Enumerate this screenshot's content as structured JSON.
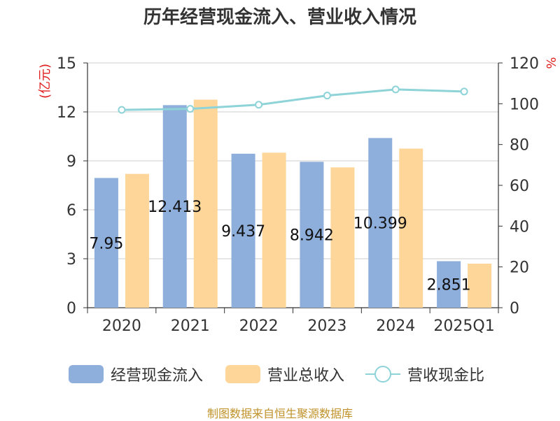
{
  "title": "历年经营现金流入、营业收入情况",
  "source": "制图数据来自恒生聚源数据库",
  "colors": {
    "cash_inflow": "#8eaedb",
    "revenue": "#ffd699",
    "ratio_line": "#8ed3d8",
    "left_unit": "#e02020",
    "source": "#c0922a"
  },
  "chart_data": {
    "type": "bar",
    "title": "历年经营现金流入、营业收入情况",
    "categories": [
      "2020",
      "2021",
      "2022",
      "2023",
      "2024",
      "2025Q1"
    ],
    "left_axis": {
      "unit": "(亿元)",
      "ylim": [
        0,
        15
      ],
      "ticks": [
        0,
        3,
        6,
        9,
        12,
        15
      ]
    },
    "right_axis": {
      "unit": "%",
      "ylim": [
        0,
        120
      ],
      "ticks": [
        0,
        20,
        40,
        60,
        80,
        100,
        120
      ]
    },
    "grid": true,
    "legend_position": "bottom",
    "series": [
      {
        "name": "经营现金流入",
        "type": "bar",
        "axis": "left",
        "values": [
          7.95,
          12.413,
          9.437,
          8.942,
          10.399,
          2.851
        ],
        "labels": [
          "7.95",
          "12.413",
          "9.437",
          "8.942",
          "10.399",
          "2.851"
        ]
      },
      {
        "name": "营业总收入",
        "type": "bar",
        "axis": "left",
        "values": [
          8.2,
          12.75,
          9.5,
          8.6,
          9.75,
          2.7
        ]
      },
      {
        "name": "营收现金比",
        "type": "line",
        "axis": "right",
        "values": [
          97,
          97.5,
          99.5,
          104,
          107,
          106
        ]
      }
    ]
  }
}
